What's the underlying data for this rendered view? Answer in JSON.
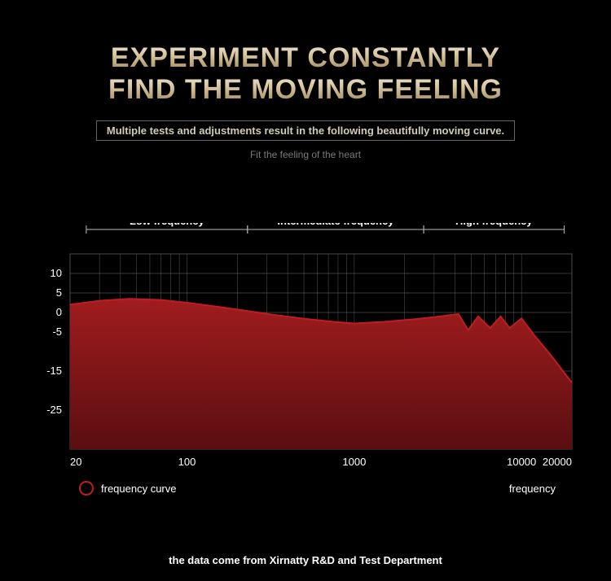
{
  "title": {
    "line1": "EXPERIMENT CONSTANTLY",
    "line2": "FIND THE MOVING FEELING",
    "fontsize": 34,
    "color_top": "#e8dcc4",
    "color_bottom": "#a58c5e"
  },
  "subtitle": {
    "text": "Multiple tests and adjustments result in the following beautifully moving curve.",
    "fontsize": 13,
    "color": "#d4c9b5",
    "border_color": "#666666"
  },
  "tagline": {
    "text": "Fit the feeling of the heart",
    "fontsize": 12,
    "color": "#7a7a7a"
  },
  "chart": {
    "type": "area",
    "background_color": "#000000",
    "grid_color": "#4a4a4a",
    "grid_width": 1,
    "axis_color": "#cccccc",
    "curve_fill_top": "#a11c1e",
    "curve_fill_bottom": "#5a0e10",
    "curve_stroke": "#be1e21",
    "curve_stroke_width": 2,
    "xlim": [
      20,
      20000
    ],
    "xscale": "log",
    "ylim": [
      -35,
      15
    ],
    "ytick_labels": [
      "10",
      "5",
      "0",
      "-5",
      "-15",
      "-25"
    ],
    "ytick_values": [
      10,
      5,
      0,
      -5,
      -15,
      -25
    ],
    "xtick_labels": [
      "20",
      "100",
      "1000",
      "10000",
      "20000"
    ],
    "xtick_values": [
      20,
      100,
      1000,
      10000,
      20000
    ],
    "xlabel": "frequency",
    "tick_fontsize": 13,
    "tick_color": "#ffffff",
    "bands": [
      {
        "label": "Low frequency",
        "from": 25,
        "to": 230
      },
      {
        "label": "Intermediate frequency",
        "from": 230,
        "to": 2600
      },
      {
        "label": "High frequency",
        "from": 2600,
        "to": 18000
      }
    ],
    "band_label_color": "#ffffff",
    "band_label_fontsize": 13,
    "data_x": [
      20,
      30,
      45,
      70,
      100,
      150,
      220,
      330,
      500,
      750,
      1000,
      1500,
      2200,
      3000,
      4200,
      4800,
      5500,
      6500,
      7500,
      8500,
      10000,
      12000,
      15000,
      20000
    ],
    "data_y": [
      2,
      3,
      3.5,
      3.2,
      2.5,
      1.5,
      0.5,
      -0.6,
      -1.6,
      -2.4,
      -2.8,
      -2.4,
      -1.8,
      -1.2,
      -0.4,
      -4.5,
      -1.0,
      -4.0,
      -1.0,
      -4.0,
      -1.5,
      -6,
      -11,
      -18
    ]
  },
  "legend": {
    "label": "frequency curve",
    "color": "#ffffff",
    "fontsize": 13,
    "marker_color": "#be1e21",
    "marker_size": 16
  },
  "footer": {
    "text": "the data come from Xirnatty R&D and Test Department",
    "fontsize": 13,
    "color": "#ffffff"
  }
}
